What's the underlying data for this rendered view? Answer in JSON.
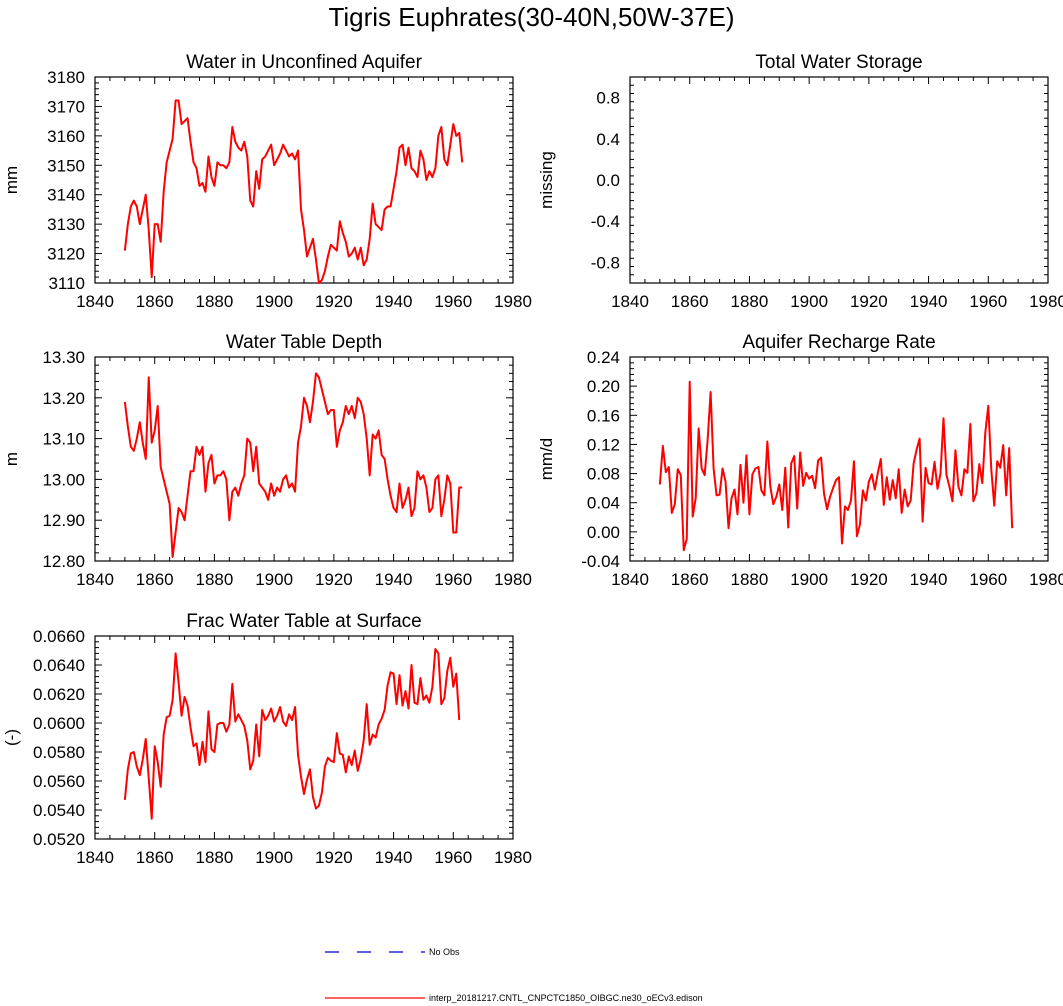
{
  "main_title": "Tigris Euphrates(30-40N,50W-37E)",
  "colors": {
    "model_line": "#ff0000",
    "obs_line": "#0000cc",
    "axis": "#000000"
  },
  "legend": {
    "obs_label": "No Obs",
    "model_label": "interp_20181217.CNTL_CNPCTC1850_OIBGC.ne30_oECv3.edison"
  },
  "chart_data": [
    {
      "id": "aquifer",
      "type": "line",
      "title": "Water in Unconfined Aquifer",
      "ylabel": "mm",
      "xlim": [
        1840,
        1980
      ],
      "ylim": [
        3110,
        3180
      ],
      "xticks": [
        "1840",
        "1860",
        "1880",
        "1900",
        "1920",
        "1940",
        "1960",
        "1980"
      ],
      "yticks": [
        "3110",
        "3120",
        "3130",
        "3140",
        "3150",
        "3160",
        "3170",
        "3180"
      ],
      "x_start": 1850,
      "values": [
        3121,
        3130,
        3136,
        3138,
        3136,
        3130,
        3135,
        3140,
        3128,
        3112,
        3130,
        3130,
        3124,
        3141,
        3151,
        3155,
        3159,
        3172,
        3172,
        3164,
        3165,
        3166,
        3158,
        3151,
        3149,
        3143,
        3144,
        3141,
        3153,
        3146,
        3143,
        3151,
        3150,
        3150,
        3149,
        3151,
        3163,
        3158,
        3156,
        3155,
        3158,
        3153,
        3138,
        3136,
        3148,
        3142,
        3152,
        3153,
        3155,
        3157,
        3150,
        3152,
        3154,
        3157,
        3155,
        3153,
        3154,
        3152,
        3155,
        3135,
        3128,
        3119,
        3122,
        3125,
        3118,
        3110,
        3111,
        3114,
        3119,
        3123,
        3122,
        3121,
        3131,
        3127,
        3124,
        3119,
        3120,
        3122,
        3118,
        3122,
        3116,
        3118,
        3125,
        3137,
        3130,
        3129,
        3128,
        3135,
        3136,
        3136,
        3142,
        3148,
        3156,
        3157,
        3150,
        3156,
        3149,
        3148,
        3146,
        3155,
        3152,
        3145,
        3148,
        3146,
        3149,
        3160,
        3163,
        3152,
        3150,
        3157,
        3164,
        3160,
        3161,
        3151
      ]
    },
    {
      "id": "tws",
      "type": "line",
      "title": "Total Water Storage",
      "ylabel": "missing",
      "xlim": [
        1840,
        1980
      ],
      "ylim": [
        -1,
        1
      ],
      "xticks": [
        "1840",
        "1860",
        "1880",
        "1900",
        "1920",
        "1940",
        "1960",
        "1980"
      ],
      "yticks": [
        "-0.8",
        "-0.4",
        "0.0",
        "0.4",
        "0.8"
      ],
      "ytick_vals": [
        -0.8,
        -0.4,
        0.0,
        0.4,
        0.8
      ],
      "values": []
    },
    {
      "id": "wtd",
      "type": "line",
      "title": "Water Table Depth",
      "ylabel": "m",
      "xlim": [
        1840,
        1980
      ],
      "ylim": [
        12.8,
        13.3
      ],
      "xticks": [
        "1840",
        "1860",
        "1880",
        "1900",
        "1920",
        "1940",
        "1960",
        "1980"
      ],
      "yticks": [
        "12.80",
        "12.90",
        "13.00",
        "13.10",
        "13.20",
        "13.30"
      ],
      "x_start": 1850,
      "values": [
        13.19,
        13.13,
        13.08,
        13.07,
        13.1,
        13.14,
        13.09,
        13.05,
        13.25,
        13.09,
        13.12,
        13.18,
        13.03,
        13.0,
        12.97,
        12.94,
        12.81,
        12.87,
        12.93,
        12.92,
        12.9,
        12.96,
        13.02,
        13.02,
        13.08,
        13.06,
        13.08,
        12.97,
        13.04,
        13.06,
        12.99,
        13.01,
        13.01,
        13.02,
        13.0,
        12.9,
        12.97,
        12.98,
        12.96,
        12.99,
        13.01,
        13.1,
        13.09,
        13.02,
        13.08,
        12.99,
        12.98,
        12.97,
        12.95,
        12.99,
        12.96,
        12.98,
        12.97,
        13.0,
        13.01,
        12.98,
        12.99,
        12.97,
        13.09,
        13.13,
        13.2,
        13.18,
        13.14,
        13.19,
        13.26,
        13.25,
        13.22,
        13.19,
        13.16,
        13.17,
        13.17,
        13.08,
        13.12,
        13.14,
        13.18,
        13.16,
        13.18,
        13.15,
        13.2,
        13.19,
        13.16,
        13.1,
        13.01,
        13.11,
        13.1,
        13.12,
        13.06,
        13.05,
        13.0,
        12.96,
        12.93,
        12.92,
        12.99,
        12.93,
        12.95,
        12.98,
        12.91,
        12.93,
        13.02,
        13.0,
        13.01,
        12.98,
        12.92,
        12.93,
        13.0,
        13.01,
        12.91,
        12.95,
        13.01,
        12.99,
        12.87,
        12.87,
        12.98,
        12.98
      ]
    },
    {
      "id": "recharge",
      "type": "line",
      "title": "Aquifer Recharge Rate",
      "ylabel": "mm/d",
      "xlim": [
        1840,
        1980
      ],
      "ylim": [
        -0.04,
        0.24
      ],
      "xticks": [
        "1840",
        "1860",
        "1880",
        "1900",
        "1920",
        "1940",
        "1960",
        "1980"
      ],
      "yticks": [
        "-0.04",
        "0.00",
        "0.04",
        "0.08",
        "0.12",
        "0.16",
        "0.20",
        "0.24"
      ],
      "x_start": 1850,
      "values": [
        0.065,
        0.118,
        0.082,
        0.089,
        0.026,
        0.038,
        0.086,
        0.078,
        -0.025,
        -0.01,
        0.206,
        0.021,
        0.046,
        0.142,
        0.087,
        0.078,
        0.126,
        0.192,
        0.087,
        0.05,
        0.051,
        0.087,
        0.069,
        0.005,
        0.046,
        0.058,
        0.024,
        0.092,
        0.04,
        0.105,
        0.024,
        0.079,
        0.087,
        0.089,
        0.057,
        0.05,
        0.124,
        0.062,
        0.038,
        0.048,
        0.065,
        0.03,
        0.088,
        0.006,
        0.094,
        0.104,
        0.032,
        0.109,
        0.063,
        0.081,
        0.073,
        0.077,
        0.06,
        0.098,
        0.102,
        0.052,
        0.031,
        0.048,
        0.06,
        0.071,
        0.075,
        -0.016,
        0.035,
        0.03,
        0.043,
        0.097,
        -0.006,
        0.01,
        0.057,
        0.043,
        0.069,
        0.079,
        0.058,
        0.081,
        0.1,
        0.037,
        0.075,
        0.044,
        0.071,
        0.046,
        0.086,
        0.026,
        0.058,
        0.035,
        0.043,
        0.094,
        0.113,
        0.128,
        0.014,
        0.088,
        0.067,
        0.065,
        0.096,
        0.059,
        0.08,
        0.156,
        0.078,
        0.062,
        0.042,
        0.112,
        0.062,
        0.05,
        0.086,
        0.081,
        0.148,
        0.042,
        0.053,
        0.093,
        0.067,
        0.136,
        0.173,
        0.086,
        0.036,
        0.097,
        0.088,
        0.119,
        0.05,
        0.115,
        0.005
      ]
    },
    {
      "id": "frac",
      "type": "line",
      "title": "Frac Water Table at Surface",
      "ylabel": "(-)",
      "xlim": [
        1840,
        1980
      ],
      "ylim": [
        0.052,
        0.066
      ],
      "xticks": [
        "1840",
        "1860",
        "1880",
        "1900",
        "1920",
        "1940",
        "1960",
        "1980"
      ],
      "yticks": [
        "0.0520",
        "0.0540",
        "0.0560",
        "0.0580",
        "0.0600",
        "0.0620",
        "0.0640",
        "0.0660"
      ],
      "x_start": 1850,
      "values": [
        0.0547,
        0.0568,
        0.0579,
        0.058,
        0.057,
        0.0564,
        0.0575,
        0.0589,
        0.0562,
        0.0534,
        0.0584,
        0.0573,
        0.0556,
        0.0592,
        0.0604,
        0.0605,
        0.0616,
        0.0648,
        0.0628,
        0.0605,
        0.0618,
        0.0612,
        0.0597,
        0.0584,
        0.0586,
        0.0571,
        0.0587,
        0.0573,
        0.0608,
        0.0582,
        0.058,
        0.0599,
        0.06,
        0.06,
        0.0594,
        0.0599,
        0.0627,
        0.0601,
        0.0606,
        0.0602,
        0.0598,
        0.0588,
        0.0568,
        0.0574,
        0.0599,
        0.0577,
        0.0609,
        0.0602,
        0.0605,
        0.061,
        0.0601,
        0.0605,
        0.0611,
        0.0601,
        0.0598,
        0.0606,
        0.0602,
        0.0611,
        0.0578,
        0.0563,
        0.0551,
        0.0561,
        0.0568,
        0.0549,
        0.0541,
        0.0543,
        0.0552,
        0.057,
        0.0576,
        0.0574,
        0.0573,
        0.0593,
        0.0579,
        0.0578,
        0.0566,
        0.0577,
        0.0571,
        0.0581,
        0.0567,
        0.0575,
        0.0588,
        0.0613,
        0.0585,
        0.0592,
        0.059,
        0.0599,
        0.0603,
        0.0609,
        0.0626,
        0.0635,
        0.0634,
        0.0613,
        0.0633,
        0.0612,
        0.0622,
        0.061,
        0.064,
        0.0614,
        0.0613,
        0.0631,
        0.0616,
        0.0619,
        0.0614,
        0.0625,
        0.0651,
        0.0648,
        0.0613,
        0.0617,
        0.0636,
        0.0645,
        0.0625,
        0.0634,
        0.0602
      ]
    }
  ]
}
